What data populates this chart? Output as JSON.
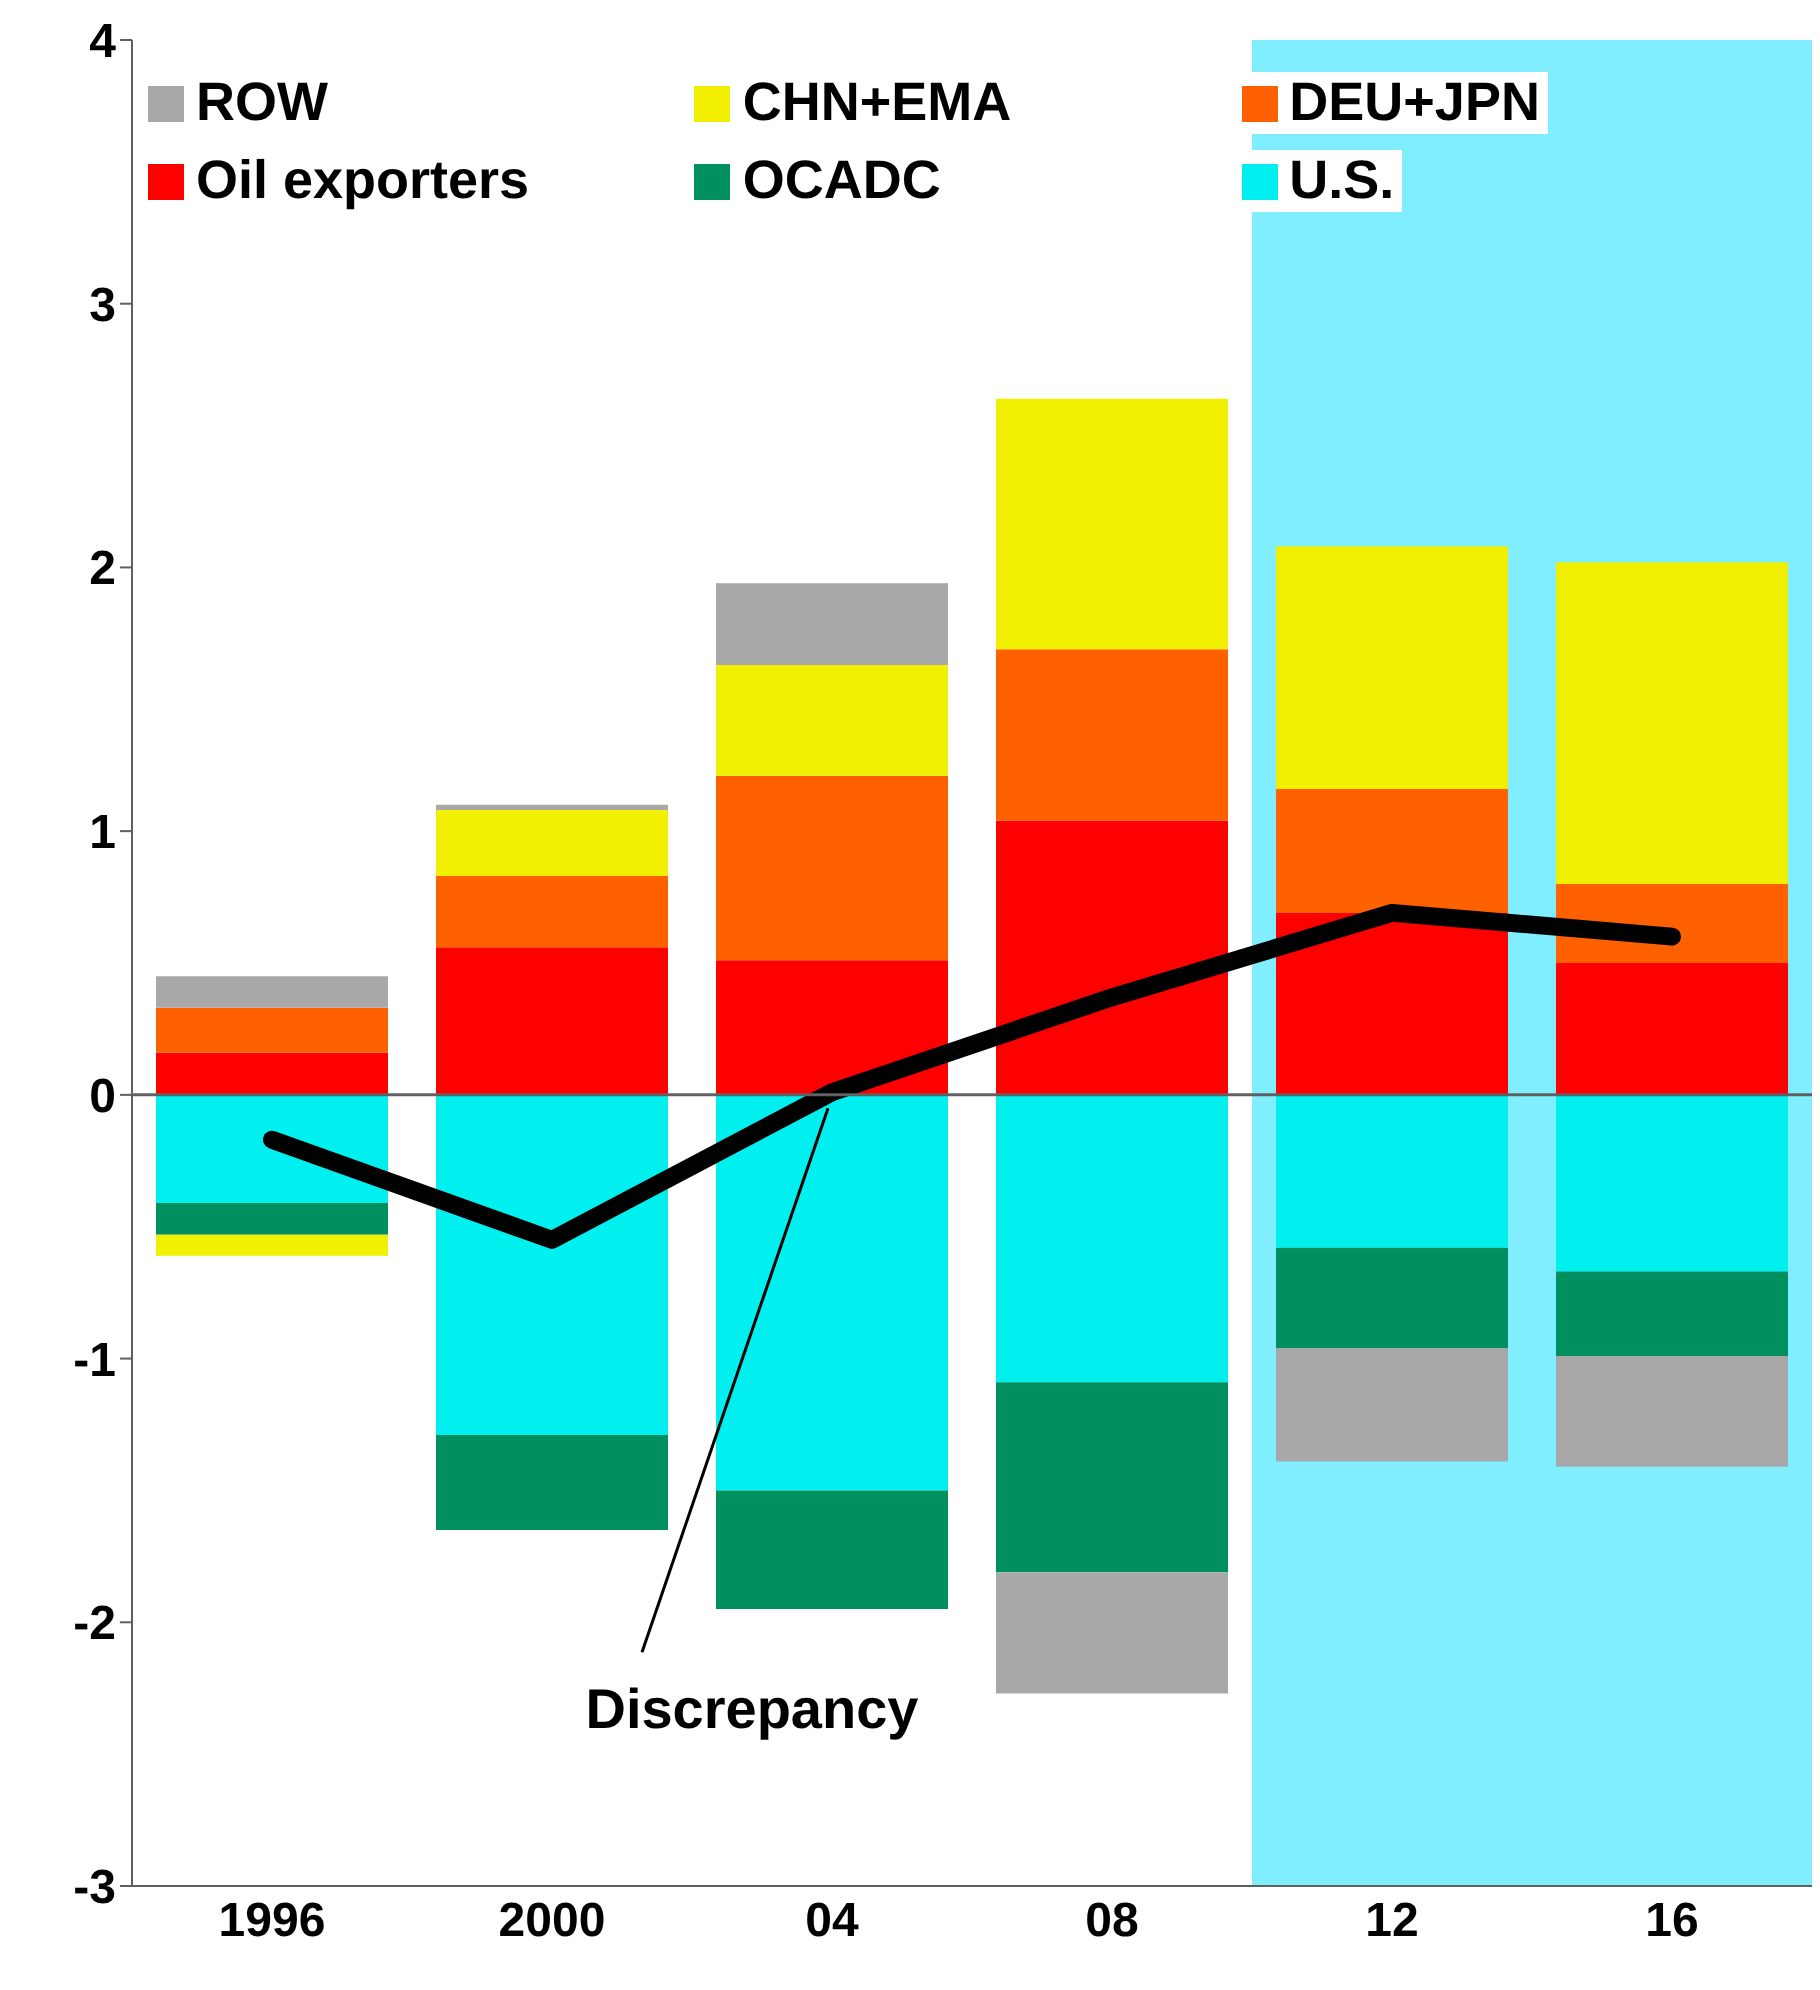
{
  "chart_data": {
    "type": "bar",
    "stacked": true,
    "categories": [
      "1996",
      "2000",
      "04",
      "08",
      "12",
      "16"
    ],
    "series": [
      {
        "name": "U.S.",
        "color": "#00f0f0",
        "values": [
          -0.41,
          -1.29,
          -1.5,
          -1.09,
          -0.58,
          -0.67
        ]
      },
      {
        "name": "OCADC",
        "color": "#009060",
        "values": [
          -0.12,
          -0.36,
          -0.45,
          -0.72,
          -0.38,
          -0.32
        ]
      },
      {
        "name": "Oil exporters",
        "color": "#ff0000",
        "values": [
          0.16,
          0.56,
          0.51,
          1.04,
          0.69,
          0.5
        ]
      },
      {
        "name": "DEU+JPN",
        "color": "#ff6000",
        "values": [
          0.17,
          0.27,
          0.7,
          0.65,
          0.47,
          0.3
        ]
      },
      {
        "name": "CHN+EMA",
        "color": "#f0f000",
        "values": [
          -0.08,
          0.25,
          0.42,
          0.95,
          0.92,
          1.22
        ]
      },
      {
        "name": "ROW",
        "color": "#a8a8a8",
        "values": [
          0.12,
          0.02,
          0.31,
          -0.46,
          -0.43,
          -0.42
        ]
      },
      {
        "name": "Discrepancy",
        "type": "line",
        "color": "#000000",
        "values": [
          -0.17,
          -0.55,
          0.01,
          0.37,
          0.69,
          0.6
        ]
      }
    ],
    "ylim": [
      -3,
      4
    ],
    "yticks": [
      -3,
      -2,
      -1,
      0,
      1,
      2,
      3,
      4
    ],
    "grid": false,
    "legend": "top",
    "ref_lines": [
      {
        "axis": "y",
        "value": 0,
        "color": "#606060"
      }
    ],
    "bands": [
      {
        "axis": "x",
        "from": "12",
        "to": "16",
        "color": "#80eeff"
      }
    ]
  }
}
